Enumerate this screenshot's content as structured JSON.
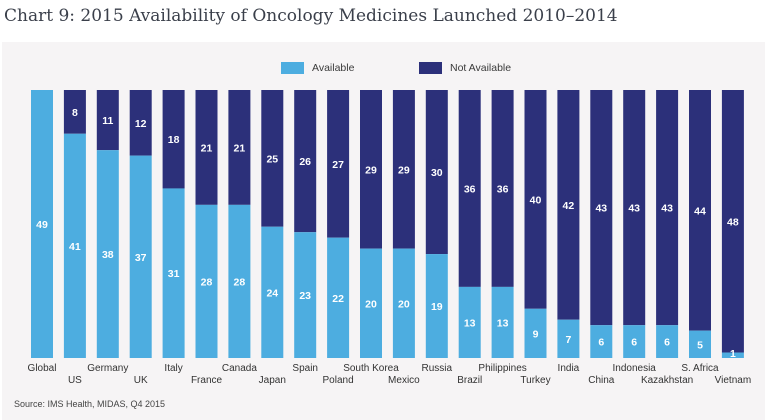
{
  "title": "Chart 9: 2015 Availability of Oncology Medicines Launched 2010–2014",
  "source": "Source: IMS Health, MIDAS, Q4 2015",
  "colors": {
    "available": "#4dade0",
    "not_available": "#2c307a",
    "label_text": "#ffffff",
    "axis_text": "#333333"
  },
  "legend": [
    {
      "key": "available",
      "label": "Available"
    },
    {
      "key": "not_available",
      "label": "Not Available"
    }
  ],
  "chart_data": {
    "type": "bar",
    "stacked": true,
    "title": "Chart 9: 2015 Availability of Oncology Medicines Launched 2010–2014",
    "xlabel": "",
    "ylabel": "",
    "ylim": [
      0,
      49
    ],
    "grid": false,
    "legend_position": "top-center",
    "categories": [
      "Global",
      "US",
      "Germany",
      "UK",
      "Italy",
      "France",
      "Canada",
      "Japan",
      "Spain",
      "Poland",
      "South Korea",
      "Mexico",
      "Russia",
      "Brazil",
      "Philippines",
      "Turkey",
      "India",
      "China",
      "Indonesia",
      "Kazakhstan",
      "S. Africa",
      "Vietnam"
    ],
    "series": [
      {
        "name": "Available",
        "values": [
          49,
          41,
          38,
          37,
          31,
          28,
          28,
          24,
          23,
          22,
          20,
          20,
          19,
          13,
          13,
          9,
          7,
          6,
          6,
          6,
          5,
          1
        ]
      },
      {
        "name": "Not Available",
        "values": [
          0,
          8,
          11,
          12,
          18,
          21,
          21,
          25,
          26,
          27,
          29,
          29,
          30,
          36,
          36,
          40,
          42,
          43,
          43,
          43,
          44,
          48
        ]
      }
    ]
  }
}
